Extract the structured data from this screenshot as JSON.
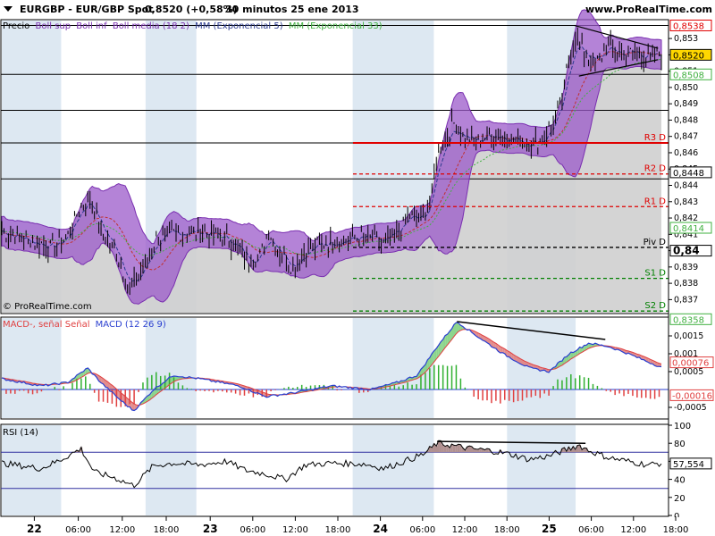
{
  "header": {
    "title": "EURGBP - EUR/GBP Spot",
    "price": "0,8520 (+0,58%)",
    "period": "30 minutos  25 ene 2013",
    "site": "www.ProRealTime.com"
  },
  "legend": {
    "price": "Precio",
    "boll_sup": "Boll sup",
    "boll_inf": "Boll inf",
    "boll_media": "Boll media (18 2)",
    "mm_exp5": "MM (Exponencial 5)",
    "mm_exp33": "MM (Exponencial 33)"
  },
  "copyright": "© ProRealTime.com",
  "colors": {
    "band": "#9b59c9",
    "band_edge": "#7a2fb0",
    "price_bg": "#cfcfcf",
    "ema5": "#2b3a8f",
    "ema33": "#40b040",
    "session_band": "#dde8f2",
    "resistance": "#e00000",
    "support": "#008000",
    "macd": "#2a3fd0",
    "signal": "#e04040",
    "rsi_line": "#000000",
    "rsi_band": "#3030a0"
  },
  "chart_data": [
    {
      "type": "line",
      "name": "price-panel",
      "ylim": [
        0.8362,
        0.8541
      ],
      "y_ticks": [
        "0,853",
        "0,852",
        "0,851",
        "0,850",
        "0,849",
        "0,848",
        "0,847",
        "0,846",
        "0,845",
        "0,844",
        "0,843",
        "0,842",
        "0,841",
        "0,840",
        "0,839",
        "0,838",
        "0,837"
      ],
      "y_tick_values": [
        0.853,
        0.852,
        0.851,
        0.85,
        0.849,
        0.848,
        0.847,
        0.846,
        0.845,
        0.844,
        0.843,
        0.842,
        0.841,
        0.84,
        0.839,
        0.838,
        0.837
      ],
      "price_tags": [
        {
          "label": "0,8538",
          "value": 0.8538,
          "color": "#e00000",
          "fill": "#ffffff"
        },
        {
          "label": "0,8520",
          "value": 0.852,
          "color": "#000000",
          "fill": "#ffd700"
        },
        {
          "label": "0,8508",
          "value": 0.8508,
          "color": "#40b040",
          "fill": "#ffffff"
        },
        {
          "label": "0,8448",
          "value": 0.8448,
          "color": "#000000",
          "fill": "#ffffff"
        },
        {
          "label": "0,8414",
          "value": 0.8414,
          "color": "#40b040",
          "fill": "#ffffff"
        },
        {
          "label": "0,84",
          "value": 0.84,
          "color": "#000000",
          "fill": "#ffffff",
          "bold": true
        },
        {
          "label": "0,8358",
          "value": 0.8358,
          "color": "#40b040",
          "fill": "#ffffff"
        }
      ],
      "pivot_levels": [
        {
          "label": "R3 D",
          "value": 0.8466,
          "color": "#e00000",
          "style": "solid"
        },
        {
          "label": "R2 D",
          "value": 0.8447,
          "color": "#e00000",
          "style": "dashed"
        },
        {
          "label": "R1 D",
          "value": 0.8427,
          "color": "#e00000",
          "style": "dashed"
        },
        {
          "label": "Piv D",
          "value": 0.8402,
          "color": "#000000",
          "style": "dashed"
        },
        {
          "label": "S1 D",
          "value": 0.8383,
          "color": "#008000",
          "style": "dashed"
        },
        {
          "label": "S2 D",
          "value": 0.8363,
          "color": "#008000",
          "style": "dashed"
        }
      ],
      "horizontal_lines": [
        0.8538,
        0.8508,
        0.8486,
        0.8466,
        0.8444
      ],
      "anchors": [
        {
          "t": 0,
          "p": 0.8412
        },
        {
          "t": 0.04,
          "p": 0.8406
        },
        {
          "t": 0.08,
          "p": 0.8402
        },
        {
          "t": 0.1,
          "p": 0.841
        },
        {
          "t": 0.12,
          "p": 0.8428
        },
        {
          "t": 0.135,
          "p": 0.8432
        },
        {
          "t": 0.15,
          "p": 0.8412
        },
        {
          "t": 0.175,
          "p": 0.8398
        },
        {
          "t": 0.195,
          "p": 0.8375
        },
        {
          "t": 0.215,
          "p": 0.839
        },
        {
          "t": 0.235,
          "p": 0.8408
        },
        {
          "t": 0.26,
          "p": 0.841
        },
        {
          "t": 0.29,
          "p": 0.8412
        },
        {
          "t": 0.32,
          "p": 0.841
        },
        {
          "t": 0.35,
          "p": 0.8405
        },
        {
          "t": 0.37,
          "p": 0.8395
        },
        {
          "t": 0.39,
          "p": 0.8395
        },
        {
          "t": 0.405,
          "p": 0.8412
        },
        {
          "t": 0.42,
          "p": 0.84
        },
        {
          "t": 0.44,
          "p": 0.839
        },
        {
          "t": 0.46,
          "p": 0.84
        },
        {
          "t": 0.49,
          "p": 0.8405
        },
        {
          "t": 0.52,
          "p": 0.8407
        },
        {
          "t": 0.55,
          "p": 0.8408
        },
        {
          "t": 0.58,
          "p": 0.8404
        },
        {
          "t": 0.6,
          "p": 0.8412
        },
        {
          "t": 0.62,
          "p": 0.8422
        },
        {
          "t": 0.635,
          "p": 0.8418
        },
        {
          "t": 0.65,
          "p": 0.843
        },
        {
          "t": 0.66,
          "p": 0.8458
        },
        {
          "t": 0.67,
          "p": 0.8468
        },
        {
          "t": 0.685,
          "p": 0.8478
        },
        {
          "t": 0.7,
          "p": 0.847
        },
        {
          "t": 0.72,
          "p": 0.8466
        },
        {
          "t": 0.74,
          "p": 0.8472
        },
        {
          "t": 0.76,
          "p": 0.847
        },
        {
          "t": 0.78,
          "p": 0.8468
        },
        {
          "t": 0.8,
          "p": 0.8466
        },
        {
          "t": 0.82,
          "p": 0.8468
        },
        {
          "t": 0.835,
          "p": 0.8478
        },
        {
          "t": 0.85,
          "p": 0.8492
        },
        {
          "t": 0.86,
          "p": 0.852
        },
        {
          "t": 0.87,
          "p": 0.8532
        },
        {
          "t": 0.88,
          "p": 0.8522
        },
        {
          "t": 0.9,
          "p": 0.8515
        },
        {
          "t": 0.92,
          "p": 0.8525
        },
        {
          "t": 0.94,
          "p": 0.852
        },
        {
          "t": 0.96,
          "p": 0.8522
        },
        {
          "t": 0.98,
          "p": 0.8518
        },
        {
          "t": 1.0,
          "p": 0.852
        }
      ],
      "triangle": {
        "upper": [
          {
            "t": 0.868,
            "p": 0.8538
          },
          {
            "t": 0.995,
            "p": 0.8524
          }
        ],
        "lower": [
          {
            "t": 0.875,
            "p": 0.8507
          },
          {
            "t": 0.995,
            "p": 0.8517
          }
        ]
      }
    },
    {
      "type": "area",
      "name": "macd-panel",
      "title": "MACD (12 26 9)",
      "label_macd": "MACD-, señal Señal",
      "ylim": [
        -0.0008,
        0.002
      ],
      "y_ticks": [
        "0,0015",
        "0,001",
        "0,0005",
        "-0,0005"
      ],
      "y_tick_values": [
        0.0015,
        0.001,
        0.0005,
        -0.0005
      ],
      "tags": [
        {
          "label": "0,00076",
          "value": 0.00076,
          "color": "#e04040"
        },
        {
          "label": "-0,00016",
          "value": -0.00016,
          "color": "#e04040"
        }
      ],
      "macd_anchors": [
        {
          "t": 0,
          "v": 0.0003
        },
        {
          "t": 0.06,
          "v": 0.0001
        },
        {
          "t": 0.1,
          "v": 0.0002
        },
        {
          "t": 0.13,
          "v": 0.0006
        },
        {
          "t": 0.15,
          "v": 0.0002
        },
        {
          "t": 0.18,
          "v": -0.0003
        },
        {
          "t": 0.2,
          "v": -0.0006
        },
        {
          "t": 0.23,
          "v": 0.0
        },
        {
          "t": 0.26,
          "v": 0.0004
        },
        {
          "t": 0.3,
          "v": 0.0003
        },
        {
          "t": 0.33,
          "v": 0.0002
        },
        {
          "t": 0.36,
          "v": 0.0001
        },
        {
          "t": 0.4,
          "v": -0.0002
        },
        {
          "t": 0.44,
          "v": -0.0001
        },
        {
          "t": 0.5,
          "v": 0.0001
        },
        {
          "t": 0.56,
          "v": 0.0
        },
        {
          "t": 0.6,
          "v": 0.0002
        },
        {
          "t": 0.63,
          "v": 0.0004
        },
        {
          "t": 0.66,
          "v": 0.0012
        },
        {
          "t": 0.69,
          "v": 0.0019
        },
        {
          "t": 0.72,
          "v": 0.0015
        },
        {
          "t": 0.76,
          "v": 0.001
        },
        {
          "t": 0.8,
          "v": 0.0006
        },
        {
          "t": 0.83,
          "v": 0.0005
        },
        {
          "t": 0.86,
          "v": 0.001
        },
        {
          "t": 0.89,
          "v": 0.0013
        },
        {
          "t": 0.92,
          "v": 0.0012
        },
        {
          "t": 0.95,
          "v": 0.001
        },
        {
          "t": 1.0,
          "v": 0.00062
        }
      ],
      "divergence": [
        {
          "t": 0.69,
          "v": 0.0019
        },
        {
          "t": 0.915,
          "v": 0.0014
        }
      ]
    },
    {
      "type": "line",
      "name": "rsi-panel",
      "title": "RSI (14)",
      "ylim": [
        0,
        100
      ],
      "y_ticks": [
        "100",
        "80",
        "60",
        "40",
        "20",
        "0"
      ],
      "y_tick_values": [
        100,
        80,
        60,
        40,
        20,
        0
      ],
      "bands": [
        70,
        30
      ],
      "last_value_label": "57,554",
      "last_value": 57.554,
      "rsi_anchors": [
        {
          "t": 0,
          "v": 58
        },
        {
          "t": 0.03,
          "v": 55
        },
        {
          "t": 0.06,
          "v": 52
        },
        {
          "t": 0.09,
          "v": 62
        },
        {
          "t": 0.12,
          "v": 74
        },
        {
          "t": 0.14,
          "v": 48
        },
        {
          "t": 0.17,
          "v": 42
        },
        {
          "t": 0.2,
          "v": 33
        },
        {
          "t": 0.23,
          "v": 55
        },
        {
          "t": 0.26,
          "v": 58
        },
        {
          "t": 0.3,
          "v": 56
        },
        {
          "t": 0.34,
          "v": 60
        },
        {
          "t": 0.37,
          "v": 50
        },
        {
          "t": 0.4,
          "v": 46
        },
        {
          "t": 0.43,
          "v": 40
        },
        {
          "t": 0.46,
          "v": 56
        },
        {
          "t": 0.5,
          "v": 58
        },
        {
          "t": 0.55,
          "v": 57
        },
        {
          "t": 0.58,
          "v": 52
        },
        {
          "t": 0.61,
          "v": 60
        },
        {
          "t": 0.64,
          "v": 68
        },
        {
          "t": 0.66,
          "v": 80
        },
        {
          "t": 0.68,
          "v": 78
        },
        {
          "t": 0.71,
          "v": 74
        },
        {
          "t": 0.74,
          "v": 72
        },
        {
          "t": 0.77,
          "v": 68
        },
        {
          "t": 0.8,
          "v": 62
        },
        {
          "t": 0.83,
          "v": 66
        },
        {
          "t": 0.86,
          "v": 74
        },
        {
          "t": 0.875,
          "v": 78
        },
        {
          "t": 0.89,
          "v": 72
        },
        {
          "t": 0.92,
          "v": 64
        },
        {
          "t": 0.95,
          "v": 60
        },
        {
          "t": 0.98,
          "v": 56
        },
        {
          "t": 1.0,
          "v": 58
        }
      ],
      "divergence": [
        {
          "t": 0.66,
          "v": 80
        },
        {
          "t": 0.885,
          "v": 78
        }
      ]
    }
  ],
  "x_axis": {
    "labels": [
      "22",
      "06:00",
      "12:00",
      "18:00",
      "23",
      "06:00",
      "12:00",
      "18:00",
      "24",
      "06:00",
      "12:00",
      "18:00",
      "25",
      "06:00",
      "12:00",
      "18:00"
    ],
    "day_labels": [
      "22",
      "23",
      "24",
      "25"
    ],
    "sessions": [
      {
        "start": 0.0,
        "end": 0.09
      },
      {
        "start": 0.218,
        "end": 0.295
      },
      {
        "start": 0.532,
        "end": 0.655
      },
      {
        "start": 0.766,
        "end": 0.87
      }
    ]
  }
}
